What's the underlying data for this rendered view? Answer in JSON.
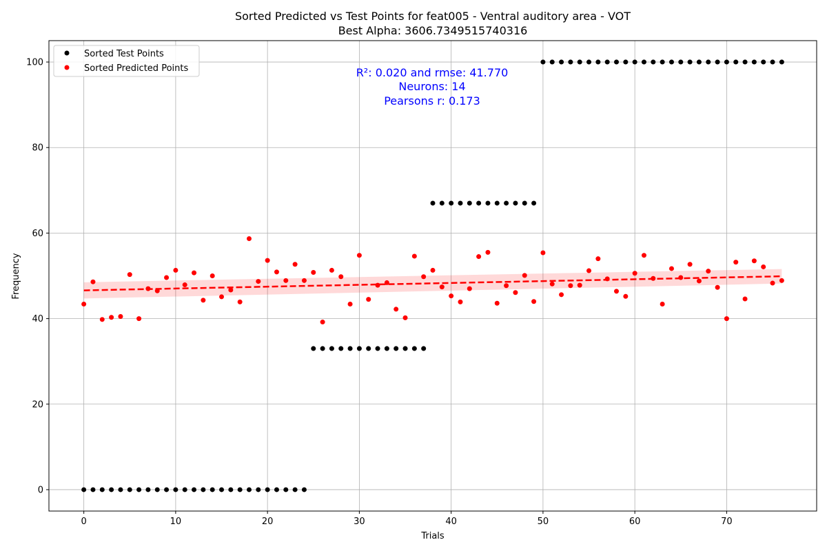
{
  "chart_data": {
    "type": "scatter",
    "title": "Sorted Predicted vs Test Points for feat005 - Ventral auditory area - VOT",
    "subtitle": "Best Alpha: 3606.7349515740316",
    "xlabel": "Trials",
    "ylabel": "Frequency",
    "xlim": [
      -3.8,
      79.8
    ],
    "ylim": [
      -5,
      105
    ],
    "xticks": [
      0,
      10,
      20,
      30,
      40,
      50,
      60,
      70
    ],
    "yticks": [
      0,
      20,
      40,
      60,
      80,
      100
    ],
    "grid": true,
    "legend_position": "top-left",
    "annotations": [
      "R²: 0.020 and rmse: 41.770",
      "Neurons: 14",
      "Pearsons r: 0.173"
    ],
    "series": [
      {
        "name": "Sorted Test Points",
        "color": "#000000",
        "x": [
          0,
          1,
          2,
          3,
          4,
          5,
          6,
          7,
          8,
          9,
          10,
          11,
          12,
          13,
          14,
          15,
          16,
          17,
          18,
          19,
          20,
          21,
          22,
          23,
          24,
          25,
          26,
          27,
          28,
          29,
          30,
          31,
          32,
          33,
          34,
          35,
          36,
          37,
          38,
          39,
          40,
          41,
          42,
          43,
          44,
          45,
          46,
          47,
          48,
          49,
          50,
          51,
          52,
          53,
          54,
          55,
          56,
          57,
          58,
          59,
          60,
          61,
          62,
          63,
          64,
          65,
          66,
          67,
          68,
          69,
          70,
          71,
          72,
          73,
          74,
          75,
          76
        ],
        "y": [
          0,
          0,
          0,
          0,
          0,
          0,
          0,
          0,
          0,
          0,
          0,
          0,
          0,
          0,
          0,
          0,
          0,
          0,
          0,
          0,
          0,
          0,
          0,
          0,
          0,
          33,
          33,
          33,
          33,
          33,
          33,
          33,
          33,
          33,
          33,
          33,
          33,
          33,
          67,
          67,
          67,
          67,
          67,
          67,
          67,
          67,
          67,
          67,
          67,
          67,
          100,
          100,
          100,
          100,
          100,
          100,
          100,
          100,
          100,
          100,
          100,
          100,
          100,
          100,
          100,
          100,
          100,
          100,
          100,
          100,
          100,
          100,
          100,
          100,
          100,
          100,
          100
        ]
      },
      {
        "name": "Sorted Predicted Points",
        "color": "#ff0000",
        "x": [
          0,
          1,
          2,
          3,
          4,
          5,
          6,
          7,
          8,
          9,
          10,
          11,
          12,
          13,
          14,
          15,
          16,
          17,
          18,
          19,
          20,
          21,
          22,
          23,
          24,
          25,
          26,
          27,
          28,
          29,
          30,
          31,
          32,
          33,
          34,
          35,
          36,
          37,
          38,
          39,
          40,
          41,
          42,
          43,
          44,
          45,
          46,
          47,
          48,
          49,
          50,
          51,
          52,
          53,
          54,
          55,
          56,
          57,
          58,
          59,
          60,
          61,
          62,
          63,
          64,
          65,
          66,
          67,
          68,
          69,
          70,
          71,
          72,
          73,
          74,
          75,
          76
        ],
        "y": [
          43.4,
          48.6,
          39.8,
          40.3,
          40.5,
          50.3,
          40.0,
          47.0,
          46.5,
          49.6,
          51.3,
          47.9,
          50.7,
          44.3,
          50.0,
          45.1,
          46.7,
          43.9,
          58.7,
          48.7,
          53.6,
          50.9,
          48.9,
          52.7,
          48.9,
          50.8,
          39.2,
          51.3,
          49.8,
          43.4,
          54.8,
          44.5,
          47.8,
          48.4,
          42.2,
          40.2,
          54.6,
          49.8,
          51.3,
          47.4,
          45.3,
          43.9,
          47.0,
          54.5,
          55.5,
          43.6,
          47.7,
          46.1,
          50.1,
          44.0,
          55.4,
          48.1,
          45.6,
          47.7,
          47.8,
          51.2,
          54.0,
          49.3,
          46.4,
          45.2,
          50.6,
          54.8,
          49.4,
          43.4,
          51.7,
          49.6,
          52.7,
          48.8,
          51.1,
          47.3,
          40.0,
          53.2,
          44.6,
          53.5,
          52.1,
          48.3,
          48.9
        ]
      }
    ],
    "regression": {
      "color": "#ff0000",
      "style": "dashed",
      "x": [
        0,
        76
      ],
      "y": [
        46.6,
        49.9
      ],
      "ci_upper": [
        48.5,
        51.6
      ],
      "ci_lower": [
        44.7,
        48.2
      ]
    }
  }
}
